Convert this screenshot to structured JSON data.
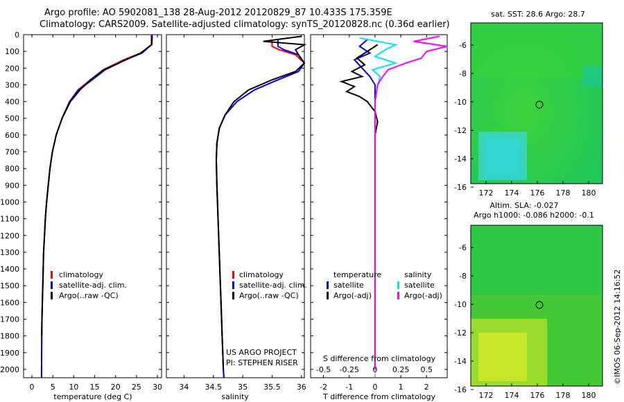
{
  "header": {
    "line1": "Argo profile: AO 5902081_138 28-Aug-2012 20120829_87 10.433S 175.359E",
    "line2": "Climatology: CARS2009. Satellite-adjusted climatology: synTS_20120828.nc (0.36d earlier)"
  },
  "credit": "©IMOS 06-Sep-2012 14:16:52",
  "colors": {
    "climatology": "#ff0000",
    "satellite": "#0000ff",
    "argo": "#000000",
    "satellite_s": "#00e5e5",
    "argo_s": "#ff00ff"
  },
  "chart_data": [
    {
      "id": "temperature",
      "type": "line",
      "xlabel": "temperature (deg C)",
      "ylabel": "",
      "xlim": [
        -2,
        31
      ],
      "ylim": [
        2050,
        0
      ],
      "xticks": [
        "0",
        "5",
        "10",
        "15",
        "20",
        "25",
        "30"
      ],
      "xtick_values": [
        0,
        5,
        10,
        15,
        20,
        25,
        30
      ],
      "yticks": [
        "0",
        "100",
        "200",
        "300",
        "400",
        "500",
        "600",
        "700",
        "800",
        "900",
        "1000",
        "1100",
        "1200",
        "1300",
        "1400",
        "1500",
        "1600",
        "1700",
        "1800",
        "1900",
        "2000"
      ],
      "legend": [
        "climatology",
        "satellite-adj. clim.",
        "Argo(..raw -QC)"
      ],
      "series": [
        {
          "name": "climatology",
          "color_key": "climatology",
          "x": [
            28.8,
            28.7,
            26,
            22,
            17,
            14,
            11,
            9,
            7.2,
            5.8,
            4.9,
            4.3,
            3.9,
            3.5,
            3.2,
            3.0,
            2.8,
            2.7,
            2.6,
            2.5,
            2.4,
            2.35,
            2.3
          ],
          "y": [
            0,
            60,
            110,
            150,
            210,
            270,
            330,
            400,
            500,
            600,
            700,
            800,
            900,
            1000,
            1100,
            1200,
            1300,
            1400,
            1500,
            1600,
            1700,
            1800,
            2050
          ]
        },
        {
          "name": "satellite-adj. clim.",
          "color_key": "satellite",
          "x": [
            28.6,
            28.6,
            26.3,
            22.4,
            17.5,
            14.4,
            11.2,
            9.0,
            7.2,
            5.8,
            4.9,
            4.3,
            3.9,
            3.5,
            3.2,
            3.0,
            2.8,
            2.7,
            2.6,
            2.5,
            2.4,
            2.35,
            2.3
          ],
          "y": [
            0,
            60,
            110,
            150,
            210,
            270,
            330,
            400,
            500,
            600,
            700,
            800,
            900,
            1000,
            1100,
            1200,
            1300,
            1400,
            1500,
            1600,
            1700,
            1800,
            2050
          ]
        },
        {
          "name": "Argo(..raw -QC)",
          "color_key": "argo",
          "x": [
            28.7,
            28.6,
            26,
            22.5,
            17.2,
            14,
            11.5,
            9.2,
            7.2,
            5.8,
            4.9,
            4.3,
            3.9,
            3.5,
            3.2,
            3.0,
            2.8,
            2.7,
            2.6,
            2.5,
            2.4,
            2.35
          ],
          "y": [
            10,
            60,
            110,
            150,
            210,
            270,
            330,
            400,
            500,
            600,
            700,
            800,
            900,
            1000,
            1100,
            1200,
            1300,
            1400,
            1500,
            1600,
            1700,
            1800
          ]
        }
      ]
    },
    {
      "id": "salinity",
      "type": "line",
      "xlabel": "salinity",
      "xlim": [
        33.7,
        36.05
      ],
      "ylim": [
        2050,
        0
      ],
      "xticks": [
        "34",
        "34.5",
        "35",
        "35.5",
        "36"
      ],
      "xtick_values": [
        34,
        34.5,
        35,
        35.5,
        36
      ],
      "legend": [
        "climatology",
        "satellite-adj. clim.",
        "Argo(..raw -QC)"
      ],
      "annotations": [
        "US ARGO PROJECT",
        "PI: STEPHEN RISER"
      ],
      "series": [
        {
          "name": "climatology",
          "color_key": "climatology",
          "x": [
            35.5,
            35.5,
            35.62,
            35.9,
            36.05,
            35.95,
            35.6,
            35.2,
            34.9,
            34.7,
            34.6,
            34.56,
            34.55,
            34.56,
            34.57,
            34.58,
            34.6,
            34.62,
            34.64,
            34.65,
            34.66,
            34.67,
            34.68
          ],
          "y": [
            30,
            70,
            90,
            120,
            170,
            220,
            270,
            330,
            400,
            480,
            560,
            650,
            750,
            900,
            1000,
            1100,
            1300,
            1500,
            1700,
            1800,
            1900,
            2000,
            2050
          ]
        },
        {
          "name": "satellite-adj. clim.",
          "color_key": "satellite",
          "x": [
            35.6,
            35.6,
            35.7,
            35.95,
            36.05,
            35.95,
            35.6,
            35.2,
            34.9,
            34.7,
            34.6,
            34.56,
            34.55,
            34.56,
            34.57,
            34.58,
            34.6,
            34.62,
            34.64,
            34.65,
            34.66,
            34.67,
            34.68
          ],
          "y": [
            30,
            70,
            90,
            120,
            170,
            220,
            270,
            330,
            400,
            480,
            560,
            650,
            750,
            900,
            1000,
            1100,
            1300,
            1500,
            1700,
            1800,
            1900,
            2000,
            2050
          ]
        },
        {
          "name": "Argo(..raw -QC)",
          "color_key": "argo",
          "x": [
            36.0,
            35.35,
            36.05,
            35.9,
            35.95,
            36.05,
            35.9,
            35.5,
            35.1,
            34.85,
            34.7,
            34.6,
            34.56,
            34.55,
            34.56,
            34.58,
            34.6,
            34.62,
            34.64,
            34.65,
            34.66,
            34.67
          ],
          "y": [
            10,
            40,
            60,
            90,
            120,
            170,
            220,
            270,
            330,
            400,
            480,
            560,
            650,
            750,
            900,
            1100,
            1300,
            1500,
            1700,
            1800,
            1900,
            2000
          ]
        }
      ]
    },
    {
      "id": "difference",
      "type": "line",
      "xlabel": "T difference from climatology",
      "xlabel_top": "S difference from climatology",
      "xlim": [
        -2.5,
        2.8
      ],
      "ylim": [
        2050,
        0
      ],
      "xticks": [
        "-2",
        "-1",
        "0",
        "1",
        "2"
      ],
      "xtick_values": [
        -2,
        -1,
        0,
        1,
        2
      ],
      "xticks_top": [
        "-0.5",
        "-0.25",
        "0",
        "0.25",
        "0.5"
      ],
      "xtick_values_top": [
        -2,
        -1,
        0,
        1,
        2
      ],
      "legend_left": {
        "title": "temperature",
        "items": [
          "satellite",
          "Argo(-adj)"
        ]
      },
      "legend_right": {
        "title": "salinity",
        "items": [
          "satellite",
          "Argo(-adj)"
        ]
      },
      "series": [
        {
          "name": "satellite",
          "group": "temperature",
          "color_key": "satellite",
          "x": [
            -0.3,
            -0.6,
            -0.2,
            -0.8,
            -0.5,
            -0.2,
            0,
            0,
            0,
            0,
            0,
            0,
            0
          ],
          "y": [
            30,
            70,
            110,
            150,
            200,
            250,
            300,
            400,
            600,
            800,
            1200,
            1600,
            2000
          ]
        },
        {
          "name": "Argo(-adj)",
          "group": "temperature",
          "color_key": "argo",
          "x": [
            0.1,
            -0.3,
            -0.7,
            -0.4,
            -0.9,
            -0.5,
            -1.3,
            -0.8,
            -1.1,
            -0.6,
            -0.3,
            0,
            0.1,
            0,
            0,
            0,
            0
          ],
          "y": [
            60,
            100,
            140,
            180,
            220,
            250,
            280,
            310,
            340,
            370,
            400,
            460,
            520,
            600,
            800,
            1200,
            2000
          ]
        },
        {
          "name": "satellite",
          "group": "salinity",
          "color_key": "satellite_s",
          "x": [
            -0.6,
            0.8,
            0.4,
            0,
            0.8,
            -0.1,
            0.2,
            0.1,
            0,
            0,
            0,
            0
          ],
          "y": [
            20,
            60,
            90,
            130,
            170,
            210,
            250,
            300,
            400,
            600,
            1000,
            2000
          ]
        },
        {
          "name": "Argo(-adj)",
          "group": "salinity",
          "color_key": "argo_s",
          "x": [
            2.5,
            1.5,
            2.8,
            2.0,
            1.8,
            1.2,
            0.5,
            0.3,
            0.1,
            0,
            0,
            0,
            0
          ],
          "y": [
            10,
            40,
            70,
            100,
            140,
            170,
            210,
            250,
            300,
            400,
            600,
            1000,
            2000
          ]
        }
      ]
    }
  ],
  "maps": [
    {
      "id": "sst-map",
      "title": "sat. SST: 28.6  Argo: 28.7",
      "xticks": [
        "172",
        "174",
        "176",
        "178",
        "180"
      ],
      "yticks": [
        "-6",
        "-8",
        "-10",
        "-12",
        "-14",
        "-16"
      ],
      "caption_line1": "Altim. SLA: -0.027",
      "caption_line2": "Argo h1000: -0.086 h2000: -0.1"
    },
    {
      "id": "sla-map",
      "xticks": [
        "172",
        "174",
        "176",
        "178",
        "180"
      ],
      "yticks": [
        "-6",
        "-8",
        "-10",
        "-12",
        "-14",
        "-16"
      ]
    }
  ]
}
